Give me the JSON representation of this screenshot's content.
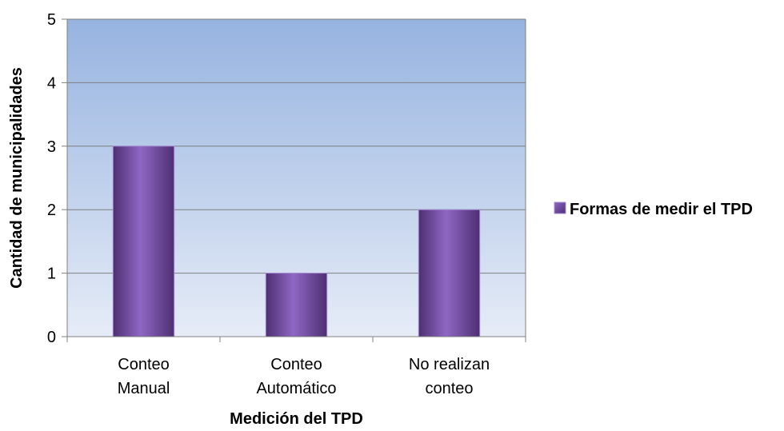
{
  "chart_data": {
    "type": "bar",
    "categories": [
      [
        "Conteo",
        "Manual"
      ],
      [
        "Conteo",
        "Automático"
      ],
      [
        "No realizan",
        "conteo"
      ]
    ],
    "series": [
      {
        "name": "Formas de medir el TPD",
        "values": [
          3,
          1,
          2
        ]
      }
    ],
    "title": "",
    "xlabel": "Medición del TPD",
    "ylabel": "Cantidad de municipalidades",
    "ylim": [
      0,
      5
    ],
    "yticks": [
      0,
      1,
      2,
      3,
      4,
      5
    ],
    "grid": true,
    "legend_position": "right",
    "colors": {
      "bar_light": "#8f67c4",
      "bar_mid": "#7a52ad",
      "bar_dark": "#4e2f72",
      "bar_edge": "#a78bd6",
      "plot_bg_top": "#96b3e0",
      "plot_bg_bottom": "#e6ecf7",
      "gridline": "#7f7f7f",
      "axis": "#808080"
    }
  }
}
